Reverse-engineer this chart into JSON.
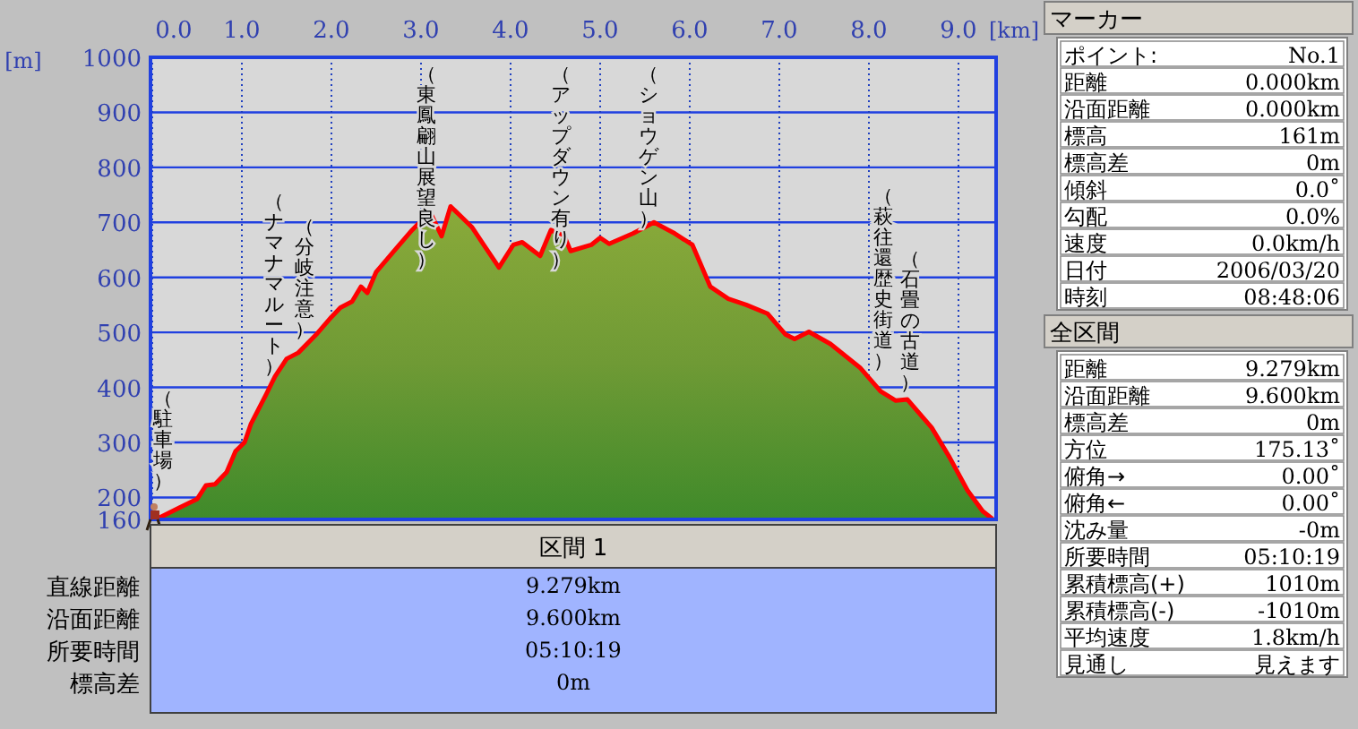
{
  "chart_data": {
    "type": "area",
    "xlabel": "[km]",
    "ylabel": "[m]",
    "xlim": [
      0,
      9.4
    ],
    "ylim": [
      160,
      1000
    ],
    "xticks": [
      {
        "value": 0,
        "label": "0.0"
      },
      {
        "value": 1,
        "label": "1.0"
      },
      {
        "value": 2,
        "label": "2.0"
      },
      {
        "value": 3,
        "label": "3.0"
      },
      {
        "value": 4,
        "label": "4.0"
      },
      {
        "value": 5,
        "label": "5.0"
      },
      {
        "value": 6,
        "label": "6.0"
      },
      {
        "value": 7,
        "label": "7.0"
      },
      {
        "value": 8,
        "label": "8.0"
      },
      {
        "value": 9,
        "label": "9.0"
      }
    ],
    "yticks": [
      160,
      200,
      300,
      400,
      500,
      600,
      700,
      800,
      900,
      1000
    ],
    "grid": true,
    "series": [
      {
        "color": "#ff0000",
        "x": [
          0.05,
          0.3,
          0.5,
          0.6,
          0.7,
          0.83,
          0.93,
          1.03,
          1.1,
          1.27,
          1.37,
          1.5,
          1.63,
          1.83,
          2.0,
          2.1,
          2.23,
          2.33,
          2.4,
          2.5,
          2.7,
          2.9,
          3.1,
          3.23,
          3.33,
          3.57,
          3.7,
          3.87,
          4.03,
          4.13,
          4.33,
          4.45,
          4.6,
          4.67,
          4.9,
          5.0,
          5.1,
          5.37,
          5.6,
          5.83,
          6.03,
          6.23,
          6.43,
          6.63,
          6.87,
          7.07,
          7.17,
          7.33,
          7.57,
          7.9,
          8.13,
          8.3,
          8.43,
          8.7,
          8.9,
          9.1,
          9.27,
          9.38
        ],
        "values": [
          161,
          181,
          197,
          222,
          224,
          246,
          284,
          300,
          333,
          387,
          420,
          452,
          463,
          496,
          528,
          545,
          556,
          583,
          572,
          610,
          648,
          686,
          719,
          675,
          729,
          691,
          659,
          618,
          659,
          664,
          639,
          686,
          675,
          648,
          659,
          672,
          661,
          680,
          700,
          680,
          659,
          583,
          561,
          550,
          534,
          496,
          488,
          501,
          479,
          436,
          393,
          376,
          378,
          327,
          273,
          213,
          175,
          161
        ]
      }
    ],
    "annotations": [
      "（駐車場）",
      "（ナマナマルート）",
      "（分岐注意）",
      "（東鳳翩山展望良し）",
      "（アップダウン有り）",
      "（ショウゲン山）",
      "（萩往還歴史街道）",
      "（石畳の古道）",
      "マーカー",
      "ポイント:",
      "No.1",
      "距離",
      "0.000km",
      "沿面距離",
      "0.000km",
      "標高",
      "161m",
      "標高差",
      "0m",
      "傾斜",
      "0.0˚",
      "勾配",
      "0.0%",
      "速度",
      "0.0km/h",
      "日付",
      "2006/03/20",
      "時刻",
      "08:48:06",
      "全区間",
      "距離",
      "9.279km",
      "沿面距離",
      "9.600km",
      "標高差",
      "0m",
      "方位",
      "175.13˚",
      "俯角→",
      "0.00˚",
      "俯角←",
      "0.00˚",
      "沈み量",
      "-0m",
      "所要時間",
      "05:10:19",
      "累積標高(+)",
      "1010m",
      "累積標高(-)",
      "-1010m",
      "平均速度",
      "1.8km/h",
      "見通し",
      "見えます",
      "区間 1",
      "直線距離",
      "9.279km",
      "沿面距離",
      "9.600km",
      "所要時間",
      "05:10:19",
      "標高差",
      "0m"
    ]
  }
}
